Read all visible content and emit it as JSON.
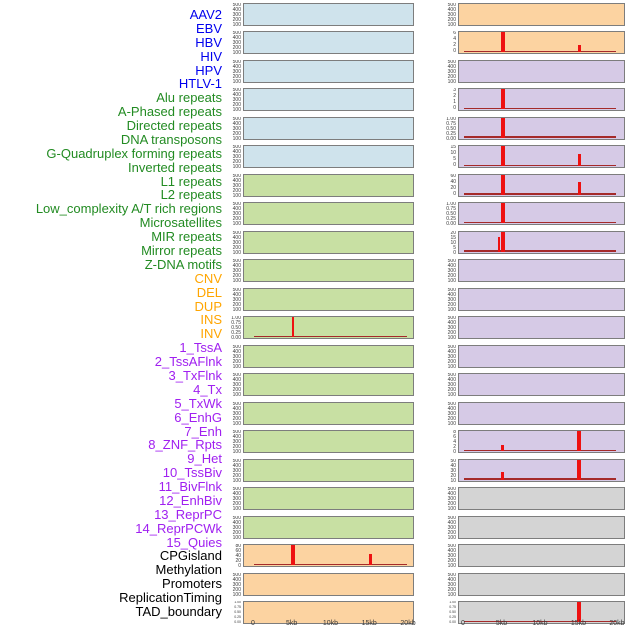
{
  "chart_data": {
    "type": "bar",
    "title": "",
    "layout": "small multiples: 44 feature labels in one right-aligned column; 22 panel rows x 2 panel columns (column-major order: features 1-22 left column, 23-44 right column); no gridlines; no legend",
    "x_axis": {
      "ticks": [
        "0",
        "5kb",
        "10kb",
        "15kb",
        "20kb"
      ],
      "range_kb": [
        0,
        20
      ]
    },
    "tick_sets": {
      "count500": [
        "500",
        "400",
        "300",
        "200",
        "100",
        "0"
      ],
      "frac": [
        "1.00",
        "0.75",
        "0.50",
        "0.25",
        "0.00"
      ],
      "cnv80": [
        "80",
        "60",
        "40",
        "20",
        "0"
      ],
      "max6": [
        "6",
        "4",
        "2",
        "0"
      ],
      "max3": [
        "3",
        "2",
        "1",
        "0"
      ],
      "max15": [
        "15",
        "10",
        "5",
        "0"
      ],
      "max60": [
        "60",
        "40",
        "20",
        "0"
      ],
      "max20": [
        "20",
        "15",
        "10",
        "5",
        "0"
      ],
      "max8": [
        "8",
        "6",
        "4",
        "2",
        "0"
      ],
      "max50": [
        "50",
        "40",
        "30",
        "20",
        "10",
        "0"
      ],
      "dense": [
        "1.00",
        "0.75",
        "0.50",
        "0.25",
        "0.00"
      ]
    },
    "colors": {
      "label": {
        "virus": "#0000EE",
        "repeat": "#228B22",
        "sv": "#FFA500",
        "chromatin": "#A020F0",
        "other": "#000000"
      },
      "panel": {
        "virus": "#CFE3EC",
        "repeat": "#C8E0A3",
        "sv": "#FCD3A1",
        "chromatin": "#D6CAE6",
        "other": "#D4D4D4"
      },
      "spike": "#EE1111",
      "baseline": "#A52A2A",
      "panel_border": "#7D7D7D",
      "axis_text": "#3A3A3A"
    },
    "features": [
      {
        "name": "AAV2",
        "group": "virus",
        "y_ticks": "count500",
        "baseline": false,
        "spikes": []
      },
      {
        "name": "EBV",
        "group": "virus",
        "y_ticks": "count500",
        "baseline": false,
        "spikes": []
      },
      {
        "name": "HBV",
        "group": "virus",
        "y_ticks": "count500",
        "baseline": false,
        "spikes": []
      },
      {
        "name": "HIV",
        "group": "virus",
        "y_ticks": "count500",
        "baseline": false,
        "spikes": []
      },
      {
        "name": "HPV",
        "group": "virus",
        "y_ticks": "count500",
        "baseline": false,
        "spikes": []
      },
      {
        "name": "HTLV-1",
        "group": "virus",
        "y_ticks": "count500",
        "baseline": false,
        "spikes": []
      },
      {
        "name": "Alu repeats",
        "group": "repeat",
        "y_ticks": "count500",
        "baseline": false,
        "spikes": []
      },
      {
        "name": "A-Phased repeats",
        "group": "repeat",
        "y_ticks": "count500",
        "baseline": false,
        "spikes": []
      },
      {
        "name": "Directed repeats",
        "group": "repeat",
        "y_ticks": "count500",
        "baseline": false,
        "spikes": []
      },
      {
        "name": "DNA transposons",
        "group": "repeat",
        "y_ticks": "count500",
        "baseline": false,
        "spikes": []
      },
      {
        "name": "G-Quadruplex forming repeats",
        "group": "repeat",
        "y_ticks": "count500",
        "baseline": false,
        "spikes": []
      },
      {
        "name": "Inverted repeats",
        "group": "repeat",
        "y_ticks": "frac",
        "baseline": true,
        "spikes": [
          {
            "kb": 5,
            "h": 1.0,
            "w": 2
          }
        ]
      },
      {
        "name": "L1 repeats",
        "group": "repeat",
        "y_ticks": "count500",
        "baseline": false,
        "spikes": []
      },
      {
        "name": "L2 repeats",
        "group": "repeat",
        "y_ticks": "count500",
        "baseline": false,
        "spikes": []
      },
      {
        "name": "Low_complexity A/T rich regions",
        "group": "repeat",
        "y_ticks": "count500",
        "baseline": false,
        "spikes": []
      },
      {
        "name": "Microsatellites",
        "group": "repeat",
        "y_ticks": "count500",
        "baseline": false,
        "spikes": []
      },
      {
        "name": "MIR repeats",
        "group": "repeat",
        "y_ticks": "count500",
        "baseline": false,
        "spikes": []
      },
      {
        "name": "Mirror repeats",
        "group": "repeat",
        "y_ticks": "count500",
        "baseline": false,
        "spikes": []
      },
      {
        "name": "Z-DNA motifs",
        "group": "repeat",
        "y_ticks": "count500",
        "baseline": false,
        "spikes": []
      },
      {
        "name": "CNV",
        "group": "sv",
        "y_ticks": "cnv80",
        "baseline": true,
        "spikes": [
          {
            "kb": 5,
            "h": 1.0,
            "w": 4
          },
          {
            "kb": 15,
            "h": 0.55,
            "w": 3
          }
        ]
      },
      {
        "name": "DEL",
        "group": "sv",
        "y_ticks": "count500",
        "baseline": false,
        "spikes": []
      },
      {
        "name": "DUP",
        "group": "sv",
        "y_ticks": "dense",
        "baseline": false,
        "spikes": []
      },
      {
        "name": "INS",
        "group": "sv",
        "y_ticks": "count500",
        "baseline": false,
        "spikes": []
      },
      {
        "name": "INV",
        "group": "sv",
        "y_ticks": "max6",
        "baseline": true,
        "spikes": [
          {
            "kb": 5,
            "h": 1.0,
            "w": 4
          },
          {
            "kb": 15,
            "h": 0.35,
            "w": 3
          }
        ]
      },
      {
        "name": "1_TssA",
        "group": "chromatin",
        "y_ticks": "count500",
        "baseline": false,
        "spikes": []
      },
      {
        "name": "2_TssAFlnk",
        "group": "chromatin",
        "y_ticks": "max3",
        "baseline": true,
        "spikes": [
          {
            "kb": 5,
            "h": 1.0,
            "w": 4
          }
        ]
      },
      {
        "name": "3_TxFlnk",
        "group": "chromatin",
        "y_ticks": "frac",
        "baseline": true,
        "spikes": [
          {
            "kb": 5,
            "h": 1.0,
            "w": 4
          }
        ]
      },
      {
        "name": "4_Tx",
        "group": "chromatin",
        "y_ticks": "max15",
        "baseline": true,
        "spikes": [
          {
            "kb": 5,
            "h": 1.0,
            "w": 4
          },
          {
            "kb": 15,
            "h": 0.63,
            "w": 3
          }
        ]
      },
      {
        "name": "5_TxWk",
        "group": "chromatin",
        "y_ticks": "max60",
        "baseline": true,
        "spikes": [
          {
            "kb": 5,
            "h": 1.0,
            "w": 4
          },
          {
            "kb": 15,
            "h": 0.65,
            "w": 3
          }
        ]
      },
      {
        "name": "6_EnhG",
        "group": "chromatin",
        "y_ticks": "frac",
        "baseline": true,
        "spikes": [
          {
            "kb": 5,
            "h": 1.0,
            "w": 4
          }
        ]
      },
      {
        "name": "7_Enh",
        "group": "chromatin",
        "y_ticks": "max20",
        "baseline": true,
        "spikes": [
          {
            "kb": 4.5,
            "h": 0.75,
            "w": 2
          },
          {
            "kb": 5,
            "h": 1.0,
            "w": 4
          }
        ]
      },
      {
        "name": "8_ZNF_Rpts",
        "group": "chromatin",
        "y_ticks": "count500",
        "baseline": false,
        "spikes": []
      },
      {
        "name": "9_Het",
        "group": "chromatin",
        "y_ticks": "count500",
        "baseline": false,
        "spikes": []
      },
      {
        "name": "10_TssBiv",
        "group": "chromatin",
        "y_ticks": "count500",
        "baseline": false,
        "spikes": []
      },
      {
        "name": "11_BivFlnk",
        "group": "chromatin",
        "y_ticks": "count500",
        "baseline": false,
        "spikes": []
      },
      {
        "name": "12_EnhBiv",
        "group": "chromatin",
        "y_ticks": "count500",
        "baseline": false,
        "spikes": []
      },
      {
        "name": "13_ReprPC",
        "group": "chromatin",
        "y_ticks": "count500",
        "baseline": false,
        "spikes": []
      },
      {
        "name": "14_ReprPCWk",
        "group": "chromatin",
        "y_ticks": "max8",
        "baseline": true,
        "spikes": [
          {
            "kb": 5,
            "h": 0.3,
            "w": 3
          },
          {
            "kb": 15,
            "h": 1.0,
            "w": 4
          }
        ]
      },
      {
        "name": "15_Quies",
        "group": "chromatin",
        "y_ticks": "max50",
        "baseline": true,
        "spikes": [
          {
            "kb": 5,
            "h": 0.4,
            "w": 3
          },
          {
            "kb": 15,
            "h": 1.0,
            "w": 4
          }
        ]
      },
      {
        "name": "CPGisland",
        "group": "other",
        "y_ticks": "count500",
        "baseline": false,
        "spikes": []
      },
      {
        "name": "Methylation",
        "group": "other",
        "y_ticks": "count500",
        "baseline": false,
        "spikes": []
      },
      {
        "name": "Promoters",
        "group": "other",
        "y_ticks": "count500",
        "baseline": false,
        "spikes": []
      },
      {
        "name": "ReplicationTiming",
        "group": "other",
        "y_ticks": "count500",
        "baseline": false,
        "spikes": []
      },
      {
        "name": "TAD_boundary",
        "group": "other",
        "y_ticks": "dense",
        "baseline": true,
        "spikes": [
          {
            "kb": 15,
            "h": 1.0,
            "w": 4
          }
        ]
      }
    ]
  }
}
